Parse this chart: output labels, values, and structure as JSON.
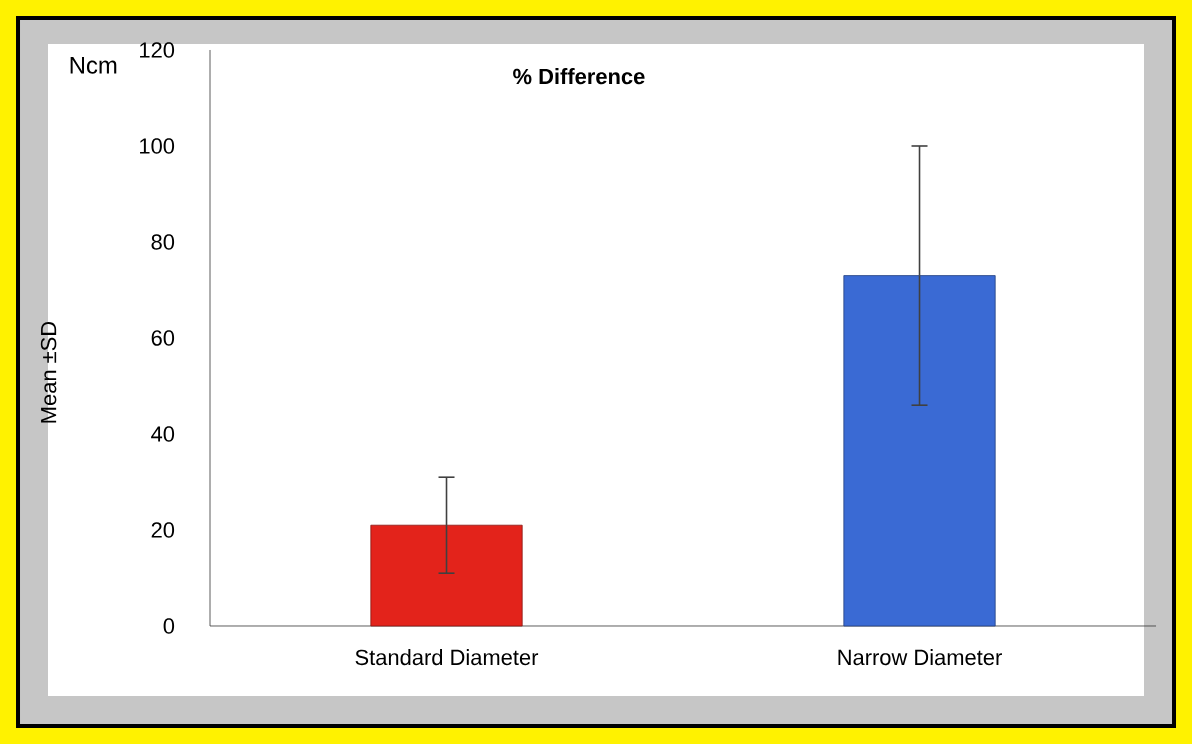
{
  "chart_data": {
    "type": "bar",
    "title": "% Difference",
    "ylabel": "Mean ±SD",
    "annotations": [
      "Ncm"
    ],
    "categories": [
      "Standard Diameter",
      "Narrow  Diameter"
    ],
    "values": [
      21,
      73
    ],
    "errors": [
      10,
      27
    ],
    "colors": [
      "#e3231b",
      "#3a6ad4"
    ],
    "ylim": [
      0,
      120
    ],
    "yticks": [
      0,
      20,
      40,
      60,
      80,
      100,
      120
    ],
    "grid": false
  }
}
